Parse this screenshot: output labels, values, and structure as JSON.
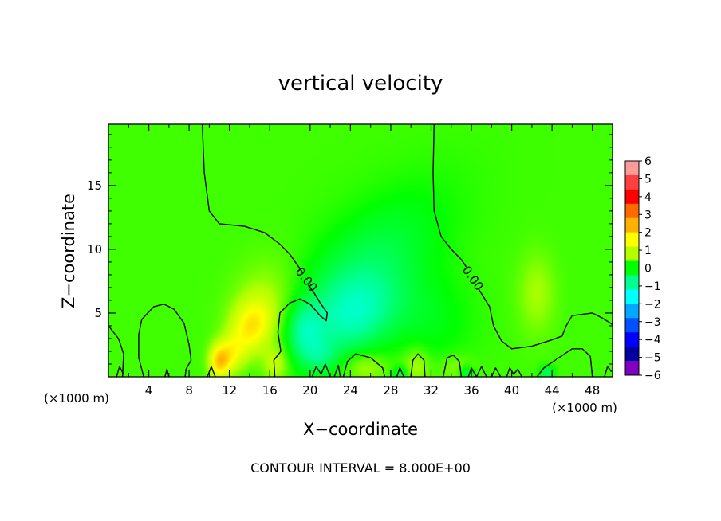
{
  "chart_data": {
    "type": "heatmap",
    "title": "vertical velocity",
    "xlabel": "X−coordinate",
    "ylabel": "Z−coordinate",
    "x_unit": "(×1000 m)",
    "x_unit_lower": "(×1000 m)",
    "footnote": "CONTOUR INTERVAL = 8.000E+00",
    "xlim": [
      0,
      50
    ],
    "ylim": [
      0,
      19.8
    ],
    "x_ticks": [
      4,
      8,
      12,
      16,
      20,
      24,
      28,
      32,
      36,
      40,
      44,
      48
    ],
    "y_ticks": [
      5,
      10,
      15
    ],
    "x_tick_labels": [
      "4",
      "8",
      "12",
      "16",
      "20",
      "24",
      "28",
      "32",
      "36",
      "40",
      "44",
      "48"
    ],
    "y_tick_labels": [
      "5",
      "10",
      "15"
    ],
    "colorbar": {
      "levels": [
        6,
        5,
        4,
        3,
        2,
        1,
        0,
        -1,
        -2,
        -3,
        -4,
        -5,
        -6
      ],
      "labels": [
        "6",
        "5",
        "4",
        "3",
        "2",
        "1",
        "0",
        "−1",
        "−2",
        "−3",
        "−4",
        "−5",
        "−6"
      ],
      "colors": [
        "#ff9a9a",
        "#ff4040",
        "#ff0000",
        "#ff6a00",
        "#ffb000",
        "#ffff00",
        "#b4ff00",
        "#00ff00",
        "#00ff90",
        "#00ffff",
        "#00a8ff",
        "#0050ff",
        "#0000ff",
        "#0000a0",
        "#8000c0"
      ]
    },
    "background_value": 0.3,
    "field_features": [
      {
        "name": "updraft-core",
        "x": 14.2,
        "z": 3.9,
        "sx": 1.6,
        "sz": 1.3,
        "rot": -0.9,
        "value": 1.4
      },
      {
        "name": "updraft-plume",
        "x": 15.5,
        "z": 5.5,
        "sx": 2.8,
        "sz": 2.2,
        "rot": -0.9,
        "value": 0.6
      },
      {
        "name": "updraft-base-1",
        "x": 11.0,
        "z": 1.2,
        "sx": 0.7,
        "sz": 0.9,
        "rot": 0,
        "value": 1.8
      },
      {
        "name": "updraft-base-2",
        "x": 12.2,
        "z": 1.8,
        "sx": 0.9,
        "sz": 1.0,
        "rot": 0,
        "value": 1.0
      },
      {
        "name": "updraft-base-3",
        "x": 16.6,
        "z": 1.0,
        "sx": 0.9,
        "sz": 1.0,
        "rot": 0,
        "value": 0.8
      },
      {
        "name": "surface-warm-1",
        "x": 25.5,
        "z": 0.8,
        "sx": 1.5,
        "sz": 0.8,
        "rot": 0,
        "value": 0.6
      },
      {
        "name": "surface-warm-2",
        "x": 30.5,
        "z": 0.9,
        "sx": 1.0,
        "sz": 1.0,
        "rot": 0,
        "value": 0.6
      },
      {
        "name": "surface-warm-3",
        "x": 34.5,
        "z": 0.7,
        "sx": 1.2,
        "sz": 0.7,
        "rot": 0,
        "value": 0.4
      },
      {
        "name": "downdraft-band",
        "x": 25.0,
        "z": 8.0,
        "sx": 6.5,
        "sz": 3.0,
        "rot": -0.6,
        "value": -0.8
      },
      {
        "name": "downdraft-core",
        "x": 24.5,
        "z": 4.8,
        "sx": 3.0,
        "sz": 2.0,
        "rot": -0.3,
        "value": -1.0
      },
      {
        "name": "downdraft-left",
        "x": 19.5,
        "z": 3.5,
        "sx": 1.2,
        "sz": 1.5,
        "rot": 0,
        "value": -0.9
      },
      {
        "name": "downdraft-low",
        "x": 21.0,
        "z": 1.6,
        "sx": 1.2,
        "sz": 0.9,
        "rot": 0,
        "value": -0.6
      },
      {
        "name": "downdraft-mid",
        "x": 32.0,
        "z": 4.5,
        "sx": 3.0,
        "sz": 2.5,
        "rot": 0,
        "value": -0.4
      },
      {
        "name": "upper-warm",
        "x": 42.5,
        "z": 6.5,
        "sx": 1.3,
        "sz": 2.2,
        "rot": 0,
        "value": 0.5
      },
      {
        "name": "surface-cool-1",
        "x": 29.0,
        "z": 0.3,
        "sx": 0.5,
        "sz": 0.4,
        "rot": 0,
        "value": -0.8
      },
      {
        "name": "surface-cool-2",
        "x": 35.5,
        "z": 0.3,
        "sx": 0.5,
        "sz": 0.4,
        "rot": 0,
        "value": -0.8
      },
      {
        "name": "surface-cool-3",
        "x": 43.5,
        "z": 0.3,
        "sx": 0.5,
        "sz": 0.4,
        "rot": 0,
        "value": -0.9
      }
    ],
    "contour_lines": [
      {
        "level": 0.0,
        "points": [
          [
            9.3,
            19.8
          ],
          [
            9.5,
            16.0
          ],
          [
            10.0,
            13.0
          ],
          [
            11.0,
            12.0
          ],
          [
            13.5,
            11.8
          ],
          [
            15.5,
            11.3
          ],
          [
            17.0,
            10.4
          ],
          [
            18.0,
            9.6
          ],
          [
            18.8,
            8.7
          ],
          [
            19.3,
            8.1
          ]
        ]
      },
      {
        "level": 0.0,
        "points": [
          [
            19.8,
            7.2
          ],
          [
            20.3,
            6.7
          ],
          [
            21.0,
            5.8
          ],
          [
            21.7,
            5.0
          ],
          [
            21.6,
            4.4
          ],
          [
            21.0,
            4.8
          ],
          [
            20.0,
            5.7
          ],
          [
            19.0,
            6.1
          ],
          [
            18.0,
            5.8
          ],
          [
            17.0,
            5.0
          ],
          [
            16.8,
            3.5
          ],
          [
            17.1,
            2.0
          ],
          [
            16.4,
            1.3
          ],
          [
            16.5,
            0.0
          ]
        ]
      },
      {
        "level": 0.0,
        "points": [
          [
            32.3,
            19.8
          ],
          [
            32.2,
            16.0
          ],
          [
            32.3,
            13.0
          ],
          [
            33.0,
            11.0
          ],
          [
            34.0,
            10.0
          ],
          [
            35.0,
            9.2
          ],
          [
            35.5,
            8.6
          ]
        ]
      },
      {
        "level": 0.0,
        "points": [
          [
            36.7,
            6.9
          ],
          [
            37.8,
            5.5
          ],
          [
            38.2,
            4.0
          ],
          [
            39.0,
            2.8
          ],
          [
            40.0,
            2.2
          ],
          [
            42.0,
            2.4
          ],
          [
            44.0,
            2.9
          ],
          [
            45.0,
            3.2
          ],
          [
            45.4,
            4.0
          ],
          [
            46.0,
            4.8
          ],
          [
            48.0,
            5.0
          ],
          [
            49.0,
            4.6
          ],
          [
            50.0,
            4.1
          ]
        ]
      },
      {
        "level": 0.0,
        "points": [
          [
            0.0,
            4.0
          ],
          [
            1.0,
            3.0
          ],
          [
            1.5,
            1.8
          ],
          [
            1.4,
            0.0
          ]
        ]
      },
      {
        "level": 0.0,
        "points": [
          [
            3.5,
            0.0
          ],
          [
            3.0,
            1.5
          ],
          [
            3.0,
            3.3
          ],
          [
            3.3,
            4.5
          ],
          [
            4.5,
            5.5
          ],
          [
            5.5,
            5.7
          ],
          [
            6.5,
            5.3
          ],
          [
            7.5,
            4.2
          ],
          [
            8.0,
            2.5
          ],
          [
            8.2,
            1.3
          ],
          [
            7.7,
            0.6
          ],
          [
            7.6,
            0.0
          ]
        ]
      },
      {
        "level": 0.0,
        "points": [
          [
            23.3,
            0.0
          ],
          [
            23.7,
            1.2
          ],
          [
            24.5,
            1.8
          ],
          [
            26.0,
            1.5
          ],
          [
            27.2,
            0.7
          ],
          [
            27.4,
            0.0
          ]
        ]
      },
      {
        "level": 0.0,
        "points": [
          [
            30.0,
            0.0
          ],
          [
            30.2,
            1.3
          ],
          [
            30.7,
            1.8
          ],
          [
            31.3,
            1.3
          ],
          [
            31.4,
            0.0
          ]
        ]
      },
      {
        "level": 0.0,
        "points": [
          [
            33.2,
            0.0
          ],
          [
            33.6,
            1.5
          ],
          [
            34.2,
            1.7
          ],
          [
            34.8,
            1.2
          ],
          [
            35.0,
            0.0
          ]
        ]
      },
      {
        "level": 0.0,
        "points": [
          [
            42.5,
            0.0
          ],
          [
            43.2,
            0.7
          ],
          [
            44.5,
            1.4
          ],
          [
            46.0,
            2.2
          ],
          [
            47.0,
            2.2
          ],
          [
            47.8,
            1.6
          ],
          [
            48.0,
            0.0
          ]
        ]
      },
      {
        "level": 0.0,
        "points": [
          [
            0.8,
            0.0
          ],
          [
            1.1,
            0.8
          ],
          [
            1.5,
            0.2
          ]
        ]
      },
      {
        "level": 0.0,
        "points": [
          [
            5.6,
            0.0
          ],
          [
            5.8,
            0.6
          ],
          [
            6.0,
            0.0
          ]
        ]
      },
      {
        "level": 0.0,
        "points": [
          [
            9.8,
            0.0
          ],
          [
            10.2,
            0.8
          ],
          [
            10.6,
            0.0
          ]
        ]
      },
      {
        "level": 0.0,
        "points": [
          [
            20.2,
            0.0
          ],
          [
            20.6,
            0.8
          ],
          [
            21.1,
            0.2
          ],
          [
            21.5,
            1.0
          ],
          [
            22.0,
            0.0
          ]
        ]
      },
      {
        "level": 0.0,
        "points": [
          [
            22.4,
            0.0
          ],
          [
            22.8,
            0.9
          ],
          [
            23.0,
            0.0
          ]
        ]
      },
      {
        "level": 0.0,
        "points": [
          [
            28.6,
            0.0
          ],
          [
            28.9,
            0.7
          ],
          [
            29.3,
            0.0
          ]
        ]
      },
      {
        "level": 0.0,
        "points": [
          [
            35.7,
            0.0
          ],
          [
            36.0,
            0.7
          ],
          [
            36.5,
            0.0
          ],
          [
            37.0,
            0.8
          ],
          [
            37.5,
            0.0
          ]
        ]
      },
      {
        "level": 0.0,
        "points": [
          [
            38.0,
            0.0
          ],
          [
            38.4,
            0.7
          ],
          [
            38.9,
            0.0
          ]
        ]
      },
      {
        "level": 0.0,
        "points": [
          [
            39.5,
            0.0
          ],
          [
            39.8,
            0.7
          ],
          [
            40.2,
            0.2
          ],
          [
            40.6,
            0.6
          ],
          [
            41.0,
            0.0
          ]
        ]
      },
      {
        "level": 0.0,
        "points": [
          [
            49.2,
            0.0
          ],
          [
            49.5,
            0.8
          ],
          [
            49.9,
            0.4
          ]
        ]
      }
    ],
    "contour_labels": [
      {
        "text": "0.00",
        "x": 19.6,
        "z": 7.6,
        "angle": 52
      },
      {
        "text": "0.00",
        "x": 36.1,
        "z": 7.7,
        "angle": 55
      }
    ]
  }
}
